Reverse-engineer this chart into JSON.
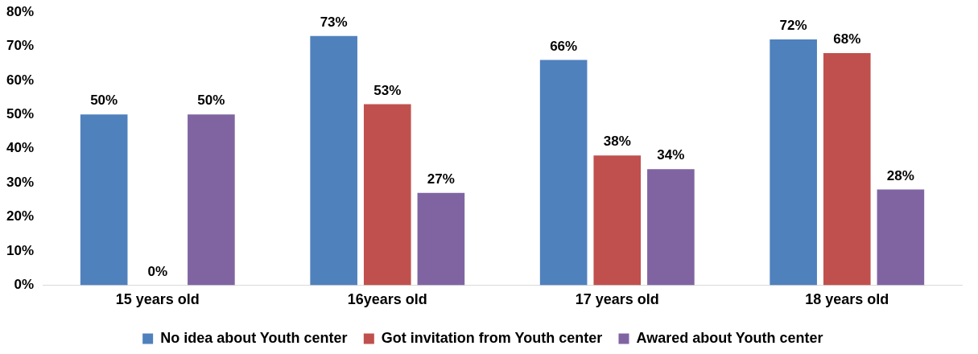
{
  "chart_data": {
    "type": "bar",
    "categories": [
      "15 years old",
      "16years old",
      "17 years old",
      "18 years old"
    ],
    "series": [
      {
        "name": "No idea about Youth center",
        "color": "#4f81bd",
        "values": [
          50,
          73,
          66,
          72
        ],
        "value_labels": [
          "50%",
          "73%",
          "66%",
          "72%"
        ]
      },
      {
        "name": "Got invitation from Youth center",
        "color": "#c0504d",
        "values": [
          0,
          53,
          38,
          68
        ],
        "value_labels": [
          "0%",
          "53%",
          "38%",
          "68%"
        ]
      },
      {
        "name": "Awared about Youth center",
        "color": "#8064a2",
        "values": [
          50,
          27,
          34,
          28
        ],
        "value_labels": [
          "50%",
          "27%",
          "34%",
          "28%"
        ]
      }
    ],
    "ylim": [
      0,
      80
    ],
    "yticks": [
      {
        "value": 0,
        "label": "0%"
      },
      {
        "value": 10,
        "label": "10%"
      },
      {
        "value": 20,
        "label": "20%"
      },
      {
        "value": 30,
        "label": "30%"
      },
      {
        "value": 40,
        "label": "40%"
      },
      {
        "value": 50,
        "label": "50%"
      },
      {
        "value": 60,
        "label": "60%"
      },
      {
        "value": 70,
        "label": "70%"
      },
      {
        "value": 80,
        "label": "80%"
      }
    ],
    "grid": false,
    "legend": "bottom"
  }
}
